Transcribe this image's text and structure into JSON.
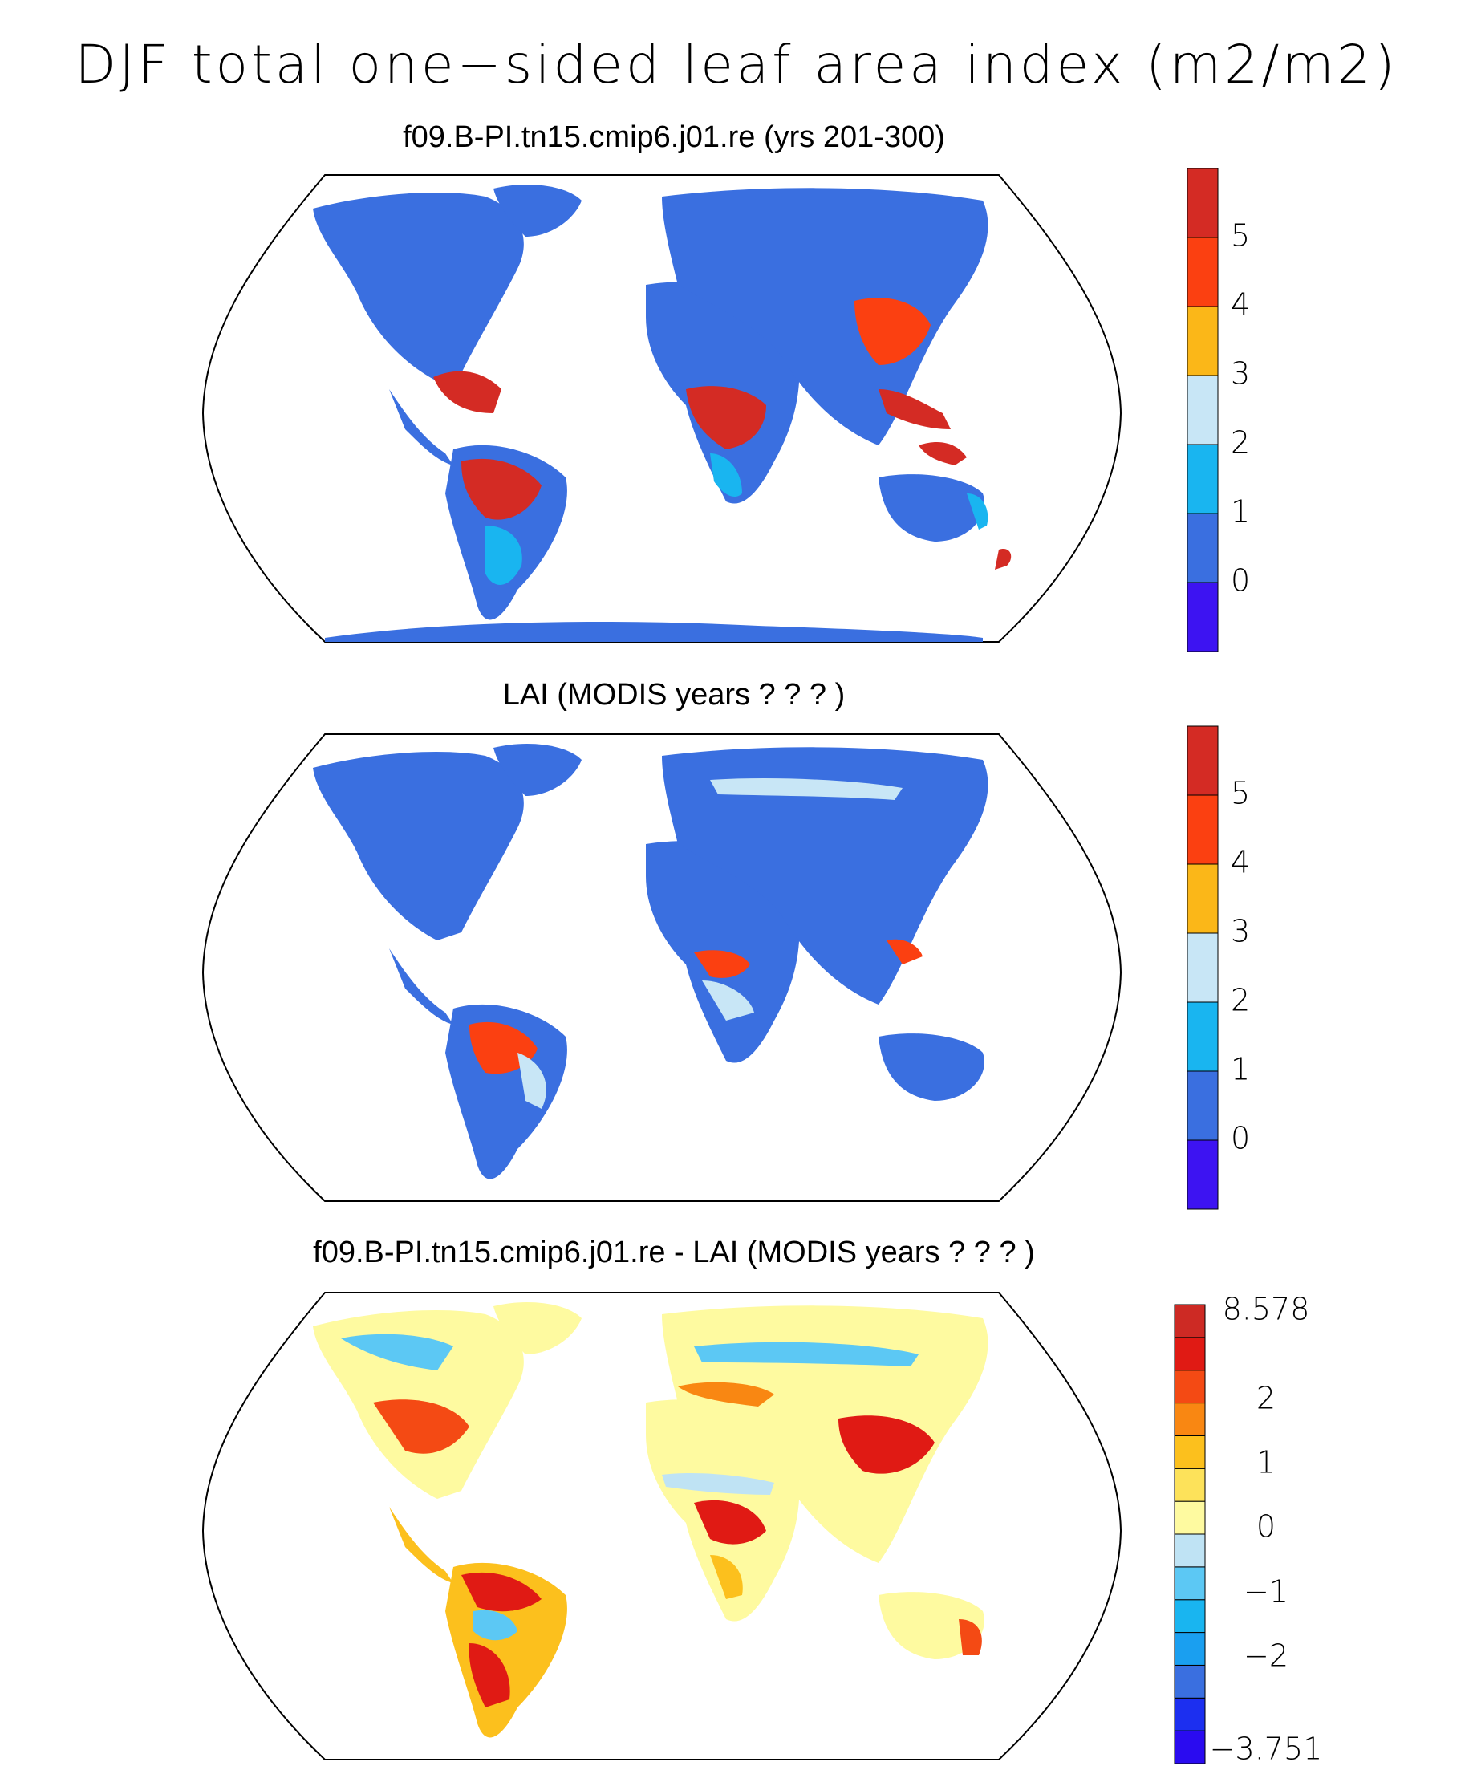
{
  "figure": {
    "title": "DJF total one−sided leaf area index (m2/m2)"
  },
  "panels": [
    {
      "title": "f09.B-PI.tn15.cmip6.j01.re (yrs 201-300)",
      "colorbar": {
        "colors": [
          "#3d13f2",
          "#3a6fe0",
          "#19b5f0",
          "#c8e6f6",
          "#fbb718",
          "#fb4011",
          "#d42b24"
        ],
        "tick_labels": [
          "0",
          "1",
          "2",
          "3",
          "4",
          "5"
        ]
      }
    },
    {
      "title": "LAI (MODIS years ? ? ? )",
      "colorbar": {
        "colors": [
          "#3d13f2",
          "#3a6fe0",
          "#19b5f0",
          "#c8e6f6",
          "#fbb718",
          "#fb4011",
          "#d42b24"
        ],
        "tick_labels": [
          "0",
          "1",
          "2",
          "3",
          "4",
          "5"
        ]
      }
    },
    {
      "title": "f09.B-PI.tn15.cmip6.j01.re - LAI (MODIS years ? ? ? )",
      "colorbar": {
        "colors": [
          "#2a0bf0",
          "#1c2ff0",
          "#3a6fe0",
          "#1a9ff0",
          "#19b5f0",
          "#5cc8f4",
          "#bfe3f4",
          "#fefaa0",
          "#fde25a",
          "#fcc01d",
          "#f98712",
          "#f44a14",
          "#e01a14",
          "#cd2a24"
        ],
        "tick_labels": [
          "8.578",
          "2",
          "1",
          "0",
          "−1",
          "−2",
          "−3.751"
        ]
      }
    }
  ]
}
